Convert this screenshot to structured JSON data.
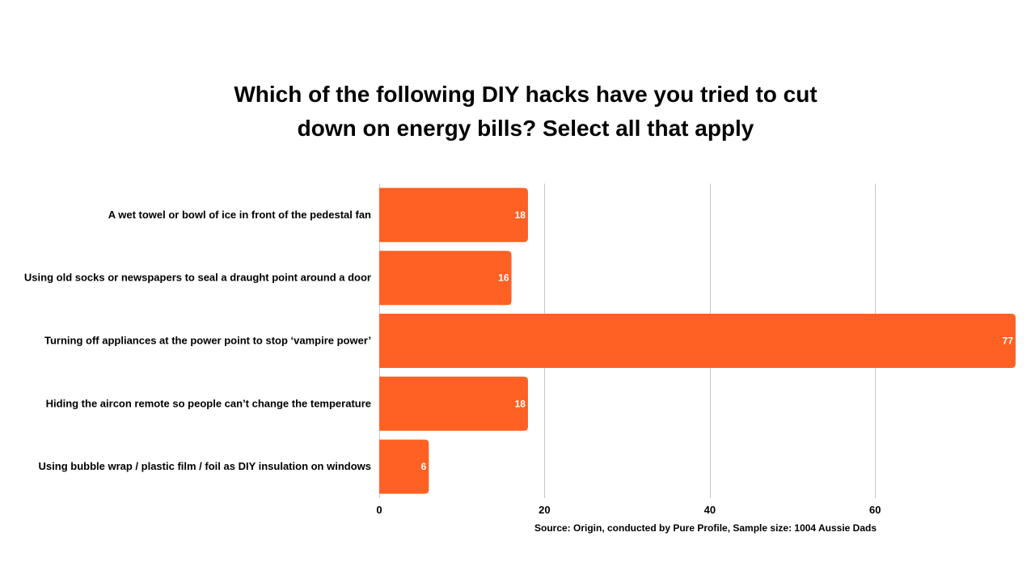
{
  "chart_data": {
    "type": "bar",
    "orientation": "horizontal",
    "title_lines": [
      "Which of the following DIY hacks have you tried to cut",
      "down on energy bills? Select all that apply"
    ],
    "categories": [
      "A wet towel or bowl of ice in front of the pedestal fan",
      "Using old socks or newspapers to seal a draught point around a door",
      "Turning off appliances at the power point to stop ‘vampire power’",
      "Hiding the aircon remote so people can’t change the temperature",
      "Using bubble wrap / plastic film / foil as DIY insulation on windows"
    ],
    "values": [
      18,
      16,
      77,
      18,
      6
    ],
    "data_labels": [
      "18",
      "16",
      "77",
      "18",
      "6"
    ],
    "xlim": [
      0,
      77
    ],
    "xticks": [
      0,
      20,
      40,
      60
    ],
    "xtick_labels": [
      "0",
      "20",
      "40",
      "60"
    ],
    "grid": "vertical",
    "legend": "none",
    "bar_color": "#ff6023",
    "grid_color": "#c8c8c8",
    "source": "Source: Origin, conducted by Pure Profile, Sample size: 1004 Aussie Dads"
  }
}
